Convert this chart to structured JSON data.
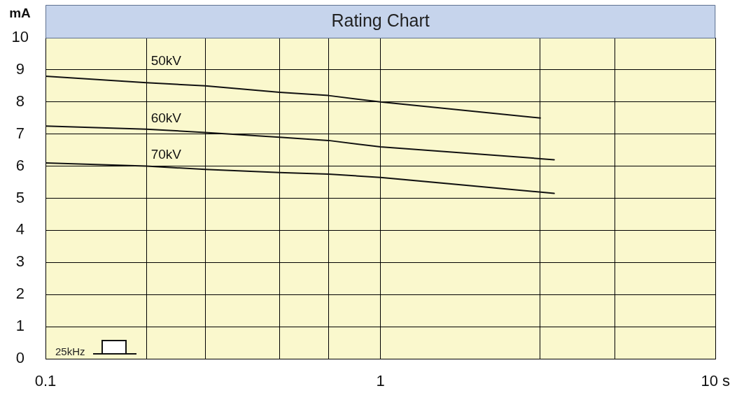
{
  "chart_data": {
    "type": "line",
    "title": "Rating Chart",
    "ylabel": "mA",
    "log": "x",
    "xlim": [
      0.1,
      10
    ],
    "xticks": [
      0.1,
      {
        "value": 0.2,
        "label": null
      },
      {
        "value": 0.3,
        "label": null
      },
      {
        "value": 0.5,
        "label": null
      },
      {
        "value": 0.7,
        "label": null
      },
      1,
      {
        "value": 3,
        "label": null
      },
      {
        "value": 5,
        "label": null
      },
      {
        "value": 10,
        "label": "10 s"
      }
    ],
    "ylim": [
      0,
      10
    ],
    "yticks": [
      0,
      1,
      2,
      3,
      4,
      5,
      6,
      7,
      8,
      9,
      10
    ],
    "grid": true,
    "marker": "none",
    "line_style": "solid",
    "series": [
      {
        "name": "50kV",
        "color": "#111111",
        "x": [
          0.1,
          0.2,
          0.3,
          0.5,
          0.7,
          1,
          3
        ],
        "values": [
          8.8,
          8.6,
          8.5,
          8.3,
          8.2,
          8.0,
          7.5
        ]
      },
      {
        "name": "60kV",
        "color": "#111111",
        "x": [
          0.1,
          0.2,
          0.3,
          0.5,
          0.7,
          1,
          3.3
        ],
        "values": [
          7.25,
          7.15,
          7.05,
          6.9,
          6.8,
          6.6,
          6.2
        ]
      },
      {
        "name": "70kV",
        "color": "#111111",
        "x": [
          0.1,
          0.2,
          0.3,
          0.5,
          0.7,
          1,
          3.3
        ],
        "values": [
          6.1,
          6.0,
          5.9,
          5.8,
          5.75,
          5.65,
          5.15
        ]
      }
    ],
    "annotations": [
      "25kHz"
    ]
  }
}
